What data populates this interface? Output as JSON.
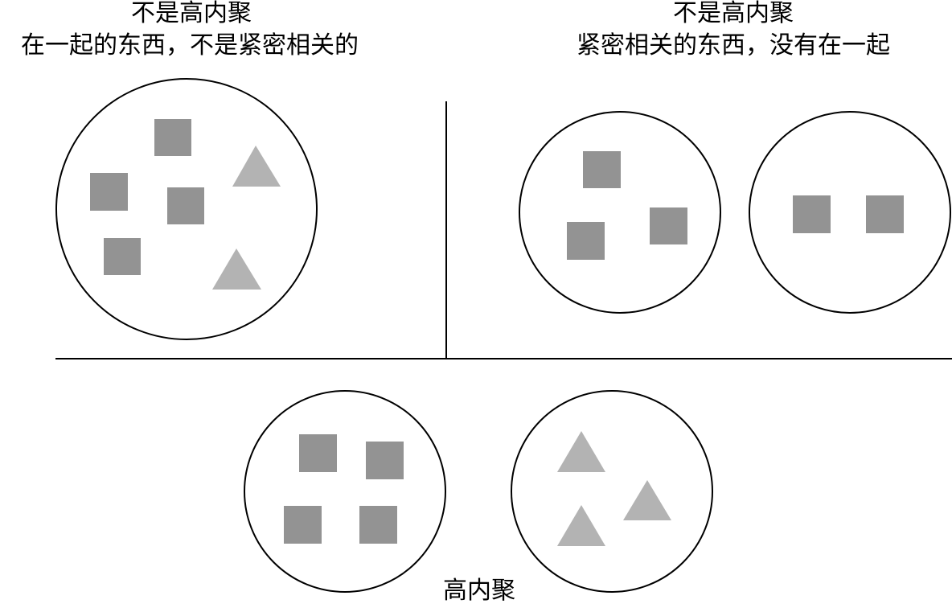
{
  "panels": {
    "top_left": {
      "title": "不是高内聚",
      "subtitle": "在一起的东西，不是紧密相关的"
    },
    "top_right": {
      "title": "不是高内聚",
      "subtitle": "紧密相关的东西，没有在一起"
    },
    "bottom": {
      "title": "高内聚"
    }
  },
  "colors": {
    "square_fill": "#939393",
    "triangle_fill": "#b3b3b3",
    "outline": "#000000",
    "background": "#ffffff"
  }
}
